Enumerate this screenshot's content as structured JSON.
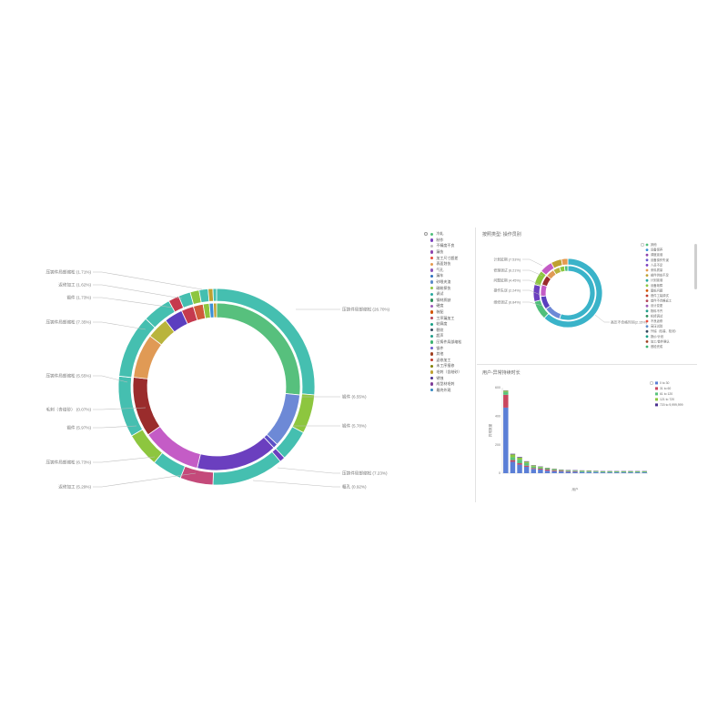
{
  "legend_main": {
    "items": [
      {
        "label": "冷轧",
        "color": "#4fbf7a"
      },
      {
        "label": "制作",
        "color": "#7b3fbf"
      },
      {
        "label": "不精度不良",
        "color": "#c0c0c0"
      },
      {
        "label": "漏伤",
        "color": "#8e44ad"
      },
      {
        "label": "加工尺寸超差",
        "color": "#e74c3c"
      },
      {
        "label": "表面划伤",
        "color": "#e59a4f"
      },
      {
        "label": "气孔",
        "color": "#8c56b8"
      },
      {
        "label": "漏车",
        "color": "#2c6fbf"
      },
      {
        "label": "砂眼夹渣",
        "color": "#5a8bc9"
      },
      {
        "label": "磁粉探伤",
        "color": "#8dc63f"
      },
      {
        "label": "调试",
        "color": "#27a9a0"
      },
      {
        "label": "钢材质缺",
        "color": "#2c8c5a"
      },
      {
        "label": "硬度",
        "color": "#9b59b6"
      },
      {
        "label": "装配",
        "color": "#d35400"
      },
      {
        "label": "工序漏加工",
        "color": "#b5465a"
      },
      {
        "label": "轮廓度",
        "color": "#16a085"
      },
      {
        "label": "裂纹",
        "color": "#34495e"
      },
      {
        "label": "超声",
        "color": "#1f9e89"
      },
      {
        "label": "压铸件局部缩松",
        "color": "#3cb371"
      },
      {
        "label": "锻件",
        "color": "#6a5acd"
      },
      {
        "label": "其他",
        "color": "#a04020"
      },
      {
        "label": "返修加工",
        "color": "#c0392b"
      },
      {
        "label": "未工序报修",
        "color": "#808000"
      },
      {
        "label": "毛刺（含结砂）",
        "color": "#bfa030"
      },
      {
        "label": "锈蚀",
        "color": "#4a2f8f"
      },
      {
        "label": "成型材毛刺",
        "color": "#7d3c98"
      },
      {
        "label": "最终外观",
        "color": "#2e86c1"
      }
    ]
  },
  "top_right": {
    "title": "按照类型: 操作员别",
    "labels": [
      {
        "text": "计划延期 (7.53%)"
      },
      {
        "text": "修理调试 (6.21%)"
      },
      {
        "text": "问题延期 (4.45%)"
      },
      {
        "text": "操作失误 (2.24%)"
      },
      {
        "text": "维修调试 (6.84%)"
      },
      {
        "text": "高压不合格时间(2.15%)"
      }
    ],
    "legend": [
      {
        "label": "其他",
        "color": "#4fbf7a"
      },
      {
        "label": "设备保养",
        "color": "#3a8fd6"
      },
      {
        "label": "调度延误",
        "color": "#8e44ad"
      },
      {
        "label": "设备操作失误",
        "color": "#6a5acd"
      },
      {
        "label": "人员不足",
        "color": "#7b3fbf"
      },
      {
        "label": "来料质量",
        "color": "#e59a4f"
      },
      {
        "label": "部件供应不足",
        "color": "#bfa030"
      },
      {
        "label": "计划延误",
        "color": "#27a9a0"
      },
      {
        "label": "设备故障",
        "color": "#8dc63f"
      },
      {
        "label": "图纸问题",
        "color": "#d35400"
      },
      {
        "label": "首件工装调试",
        "color": "#c0392b"
      },
      {
        "label": "首件不合格返工",
        "color": "#b5465a"
      },
      {
        "label": "设计变更",
        "color": "#9b59b6"
      },
      {
        "label": "物料不齐",
        "color": "#1f9e89"
      },
      {
        "label": "机修调试",
        "color": "#2c8c5a"
      },
      {
        "label": "不良返修",
        "color": "#e74c3c"
      },
      {
        "label": "高压试验",
        "color": "#5a8bc9"
      },
      {
        "label": "外協（包装、检测）",
        "color": "#34495e"
      },
      {
        "label": "报价/计划",
        "color": "#16a085"
      },
      {
        "label": "加工/首件确认",
        "color": "#a04020"
      },
      {
        "label": "首检完成",
        "color": "#3cb371"
      }
    ]
  },
  "bottom_right": {
    "title": "用户-异常持续时长",
    "legend": [
      {
        "label": "0 to 30",
        "color": "#5b7fd6"
      },
      {
        "label": "31 to 60",
        "color": "#c9465f"
      },
      {
        "label": "61 to 120",
        "color": "#59c37c"
      },
      {
        "label": "121 to 720",
        "color": "#8dc63f"
      },
      {
        "label": "720 to 9,999,999",
        "color": "#4a2f8f"
      }
    ]
  },
  "chart_data": [
    {
      "type": "pie",
      "title": "",
      "inner_ring": [
        {
          "label": "",
          "value": 26.7,
          "color": "#57c07d"
        },
        {
          "label": "",
          "value": 10.6,
          "color": "#6d89d6"
        },
        {
          "label": "",
          "value": 0.9,
          "color": "#5b4fc6"
        },
        {
          "label": "",
          "value": 15.8,
          "color": "#6b3fbf"
        },
        {
          "label": "",
          "value": 11.6,
          "color": "#c45cc6"
        },
        {
          "label": "",
          "value": 11.6,
          "color": "#9a2c2c"
        },
        {
          "label": "",
          "value": 8.6,
          "color": "#e09a55"
        },
        {
          "label": "",
          "value": 4.2,
          "color": "#b9b43c"
        },
        {
          "label": "",
          "value": 3.6,
          "color": "#5b3fbf"
        },
        {
          "label": "",
          "value": 2.4,
          "color": "#c53a4e"
        },
        {
          "label": "",
          "value": 1.9,
          "color": "#d05a3a"
        },
        {
          "label": "",
          "value": 1.2,
          "color": "#8dc63f"
        },
        {
          "label": "",
          "value": 0.8,
          "color": "#3a8fd6"
        },
        {
          "label": "",
          "value": 0.6,
          "color": "#bfa030"
        }
      ],
      "outer_ring": [
        {
          "label": "",
          "value": 26.7,
          "color": "#45bfb0"
        },
        {
          "label": "",
          "value": 6.5,
          "color": "#8dc63f"
        },
        {
          "label": "",
          "value": 5.2,
          "color": "#45bfb0"
        },
        {
          "label": "",
          "value": 0.9,
          "color": "#6b3fbf"
        },
        {
          "label": "",
          "value": 12.0,
          "color": "#45bfb0"
        },
        {
          "label": "",
          "value": 5.5,
          "color": "#c44a7a"
        },
        {
          "label": "",
          "value": 5.0,
          "color": "#45bfb0"
        },
        {
          "label": "",
          "value": 5.8,
          "color": "#8dc63f"
        },
        {
          "label": "",
          "value": 10.2,
          "color": "#45bfb0"
        },
        {
          "label": "",
          "value": 10.6,
          "color": "#45bfb0"
        },
        {
          "label": "",
          "value": 4.8,
          "color": "#45bfb0"
        },
        {
          "label": "",
          "value": 1.8,
          "color": "#c53a4e"
        },
        {
          "label": "",
          "value": 2.0,
          "color": "#45bfb0"
        },
        {
          "label": "",
          "value": 1.5,
          "color": "#8dc63f"
        },
        {
          "label": "",
          "value": 1.5,
          "color": "#45bfb0"
        },
        {
          "label": "",
          "value": 0.8,
          "color": "#bfa030"
        },
        {
          "label": "",
          "value": 0.6,
          "color": "#45bfb0"
        }
      ],
      "callouts_left": [
        {
          "text": "压铸件局部缩松 (1.71%)"
        },
        {
          "text": "返修加工 (1.62%)"
        },
        {
          "text": "锻件 (1.73%)"
        },
        {
          "text": "压铸件局部缩松 (7.35%)"
        },
        {
          "text": "压铸件局部缩松 (5.55%)"
        },
        {
          "text": "毛刺（含结砂） (0.07%)"
        },
        {
          "text": "锻件 (5.97%)"
        },
        {
          "text": "压铸件局部缩松 (6.73%)"
        },
        {
          "text": "返修加工 (5.29%)"
        }
      ],
      "callouts_right": [
        {
          "text": "压铸件局部缩松 (26.70%)"
        },
        {
          "text": "锻件 (6.55%)"
        },
        {
          "text": "锻件 (5.78%)"
        },
        {
          "text": "压铸件局部缩松 (7.23%)"
        },
        {
          "text": "粗孔 (0.92%)"
        }
      ]
    },
    {
      "type": "pie",
      "title": "按照类型: 操作员别",
      "inner_ring": [
        {
          "label": "",
          "value": 55,
          "color": "#3ab3c9"
        },
        {
          "label": "",
          "value": 10,
          "color": "#6d89d6"
        },
        {
          "label": "",
          "value": 8,
          "color": "#5b3fbf"
        },
        {
          "label": "",
          "value": 7,
          "color": "#c45cc6"
        },
        {
          "label": "",
          "value": 6,
          "color": "#9a2c2c"
        },
        {
          "label": "",
          "value": 5,
          "color": "#e09a55"
        },
        {
          "label": "",
          "value": 4,
          "color": "#b9b43c"
        },
        {
          "label": "",
          "value": 3,
          "color": "#8dc63f"
        },
        {
          "label": "",
          "value": 2,
          "color": "#4fbf7a"
        }
      ],
      "outer_ring": [
        {
          "label": "",
          "value": 62,
          "color": "#3ab3c9"
        },
        {
          "label": "",
          "value": 9,
          "color": "#4fbf7a"
        },
        {
          "label": "",
          "value": 8,
          "color": "#6b3fbf"
        },
        {
          "label": "",
          "value": 7,
          "color": "#8dc63f"
        },
        {
          "label": "",
          "value": 6,
          "color": "#c45cc6"
        },
        {
          "label": "",
          "value": 5,
          "color": "#bfa030"
        },
        {
          "label": "",
          "value": 3,
          "color": "#e59a4f"
        }
      ]
    },
    {
      "type": "bar",
      "title": "用户-异常持续时长",
      "xlabel": "用户",
      "ylabel": "异常数量",
      "ylim": [
        0,
        600
      ],
      "y_ticks": [
        0,
        200,
        400,
        600
      ],
      "categories": [
        "",
        "",
        "",
        "",
        "",
        "",
        "",
        "",
        "",
        "",
        "",
        "",
        "",
        "",
        "",
        "",
        "",
        "",
        "",
        "",
        ""
      ],
      "series": [
        {
          "name": "0 to 30",
          "color": "#5b7fd6",
          "values": [
            460,
            80,
            60,
            45,
            30,
            26,
            18,
            14,
            12,
            10,
            10,
            8,
            8,
            8,
            6,
            6,
            6,
            6,
            6,
            6,
            6
          ]
        },
        {
          "name": "31 to 60",
          "color": "#c9465f",
          "values": [
            90,
            12,
            10,
            8,
            6,
            6,
            8,
            6,
            5,
            4,
            4,
            0,
            0,
            0,
            0,
            0,
            0,
            0,
            0,
            0,
            0
          ]
        },
        {
          "name": "61 to 120",
          "color": "#59c37c",
          "values": [
            20,
            20,
            25,
            18,
            10,
            8,
            6,
            5,
            4,
            4,
            4,
            6,
            4,
            4,
            4,
            4,
            4,
            4,
            4,
            4,
            4
          ]
        },
        {
          "name": "121 to 720",
          "color": "#8dc63f",
          "values": [
            8,
            20,
            15,
            10,
            8,
            6,
            4,
            4,
            3,
            3,
            2,
            4,
            4,
            3,
            3,
            3,
            3,
            3,
            3,
            3,
            3
          ]
        },
        {
          "name": "720 to 9,999,999",
          "color": "#4a2f8f",
          "values": [
            2,
            4,
            4,
            3,
            2,
            2,
            2,
            2,
            2,
            2,
            2,
            2,
            2,
            2,
            2,
            2,
            2,
            2,
            2,
            2,
            2
          ]
        }
      ]
    }
  ]
}
